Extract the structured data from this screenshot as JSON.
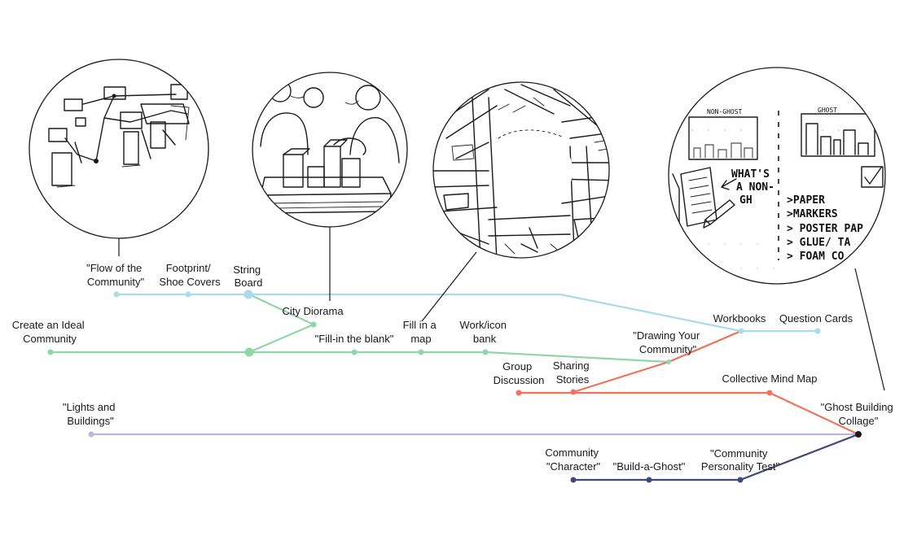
{
  "colors": {
    "blue": "#a9dbe8",
    "green": "#8fd6a8",
    "red": "#f0735c",
    "lavender": "#bcb6d8",
    "navy": "#3e4a78",
    "pin": "#1a1a1a",
    "circle": "#1a1a1a"
  },
  "lines": {
    "blue": {
      "nodes": [
        "\"Flow of the Community\"",
        "Footprint/ Shoe Covers",
        "String Board",
        "Workbooks",
        "Question Cards"
      ]
    },
    "green": {
      "nodes": [
        "Create an Ideal Community",
        "City Diorama",
        "\"Fill-in the blank\"",
        "Fill in a map",
        "Work/icon bank",
        "\"Drawing Your Community\"",
        "Workbooks"
      ]
    },
    "red": {
      "nodes": [
        "Group Discussion",
        "Sharing Stories",
        "\"Drawing Your Community\"",
        "Workbooks",
        "Collective Mind Map",
        "\"Ghost Building Collage\""
      ]
    },
    "lavender": {
      "nodes": [
        "\"Lights and Buildings\"",
        "\"Ghost Building Collage\""
      ]
    },
    "navy": {
      "nodes": [
        "Community \"Character\"",
        "\"Build-a-Ghost\"",
        "\"Community Personality Test\"",
        "\"Ghost Building Collage\""
      ]
    }
  },
  "labels": {
    "flow_1": "\"Flow of the",
    "flow_2": "Community\"",
    "footprint_1": "Footprint/",
    "footprint_2": "Shoe Covers",
    "string_1": "String",
    "string_2": "Board",
    "city_diorama": "City Diorama",
    "ideal_1": "Create an Ideal",
    "ideal_2": "Community",
    "fill_blank": "\"Fill-in the blank\"",
    "fill_map_1": "Fill in a",
    "fill_map_2": "map",
    "icon_bank_1": "Work/icon",
    "icon_bank_2": "bank",
    "workbooks": "Workbooks",
    "question_cards": "Question Cards",
    "drawing_1": "\"Drawing Your",
    "drawing_2": "Community\"",
    "group_1": "Group",
    "group_2": "Discussion",
    "sharing_1": "Sharing",
    "sharing_2": "Stories",
    "mind_map": "Collective Mind Map",
    "ghost_collage_1": "\"Ghost Building",
    "ghost_collage_2": "Collage\"",
    "lights_1": "\"Lights and",
    "lights_2": "Buildings\"",
    "character_1": "Community",
    "character_2": "\"Character\"",
    "build_ghost": "\"Build-a-Ghost\"",
    "personality_1": "\"Community",
    "personality_2": "Personality Test\""
  },
  "sketch_text": {
    "non_ghost": "NON-GHOST",
    "ghost": "GHOST",
    "whats_1": "WHAT'S",
    "whats_2": "A NON-",
    "whats_3": "GH",
    "paper": ">PAPER",
    "markers": ">MARKERS",
    "poster": "> POSTER PAP",
    "glue": "> GLUE/ TA",
    "foam": "> FOAM CO"
  }
}
